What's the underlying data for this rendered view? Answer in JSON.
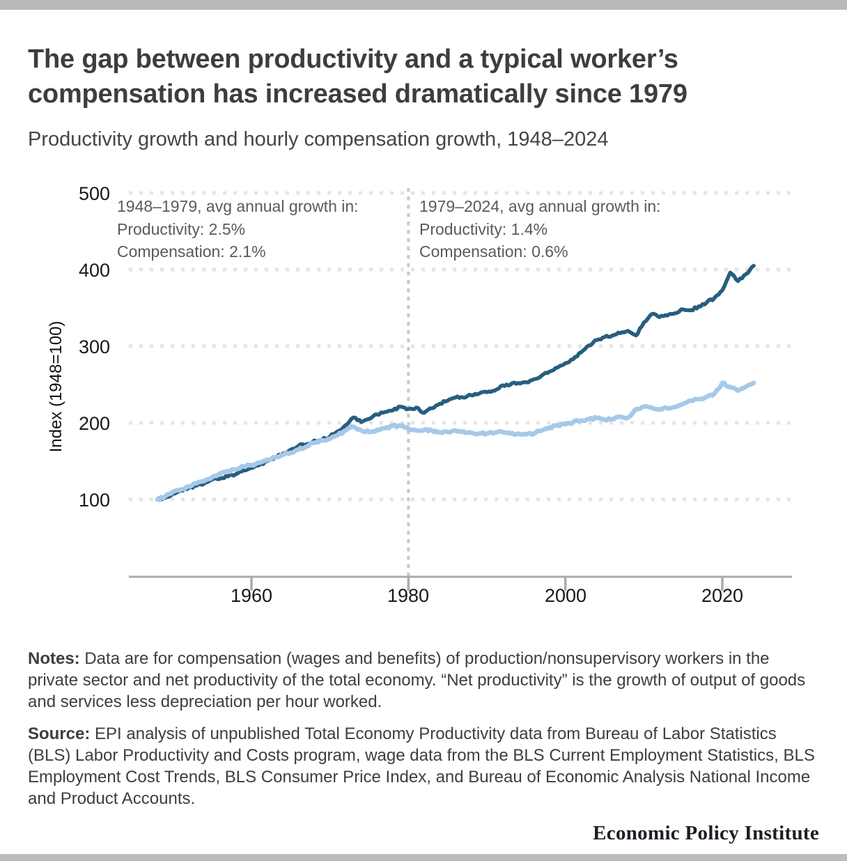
{
  "page": {
    "title": "The gap between productivity and a typical worker’s compensation has increased dramatically since 1979",
    "subtitle": "Productivity growth and hourly compensation growth, 1948–2024",
    "notes_label": "Notes:",
    "notes_text": " Data are for compensation (wages and benefits) of production/nonsupervisory workers in the private sector and net productivity of the total economy. “Net productivity” is the growth of output of goods and services less depreciation per hour worked.",
    "source_label": "Source:",
    "source_text": " EPI analysis of unpublished Total Economy Productivity data from Bureau of Labor Statistics (BLS) Labor Productivity and Costs program, wage data from the BLS Current Employment Statistics, BLS Employment Cost Trends, BLS Consumer Price Index, and Bureau of Economic Analysis National Income and Product Accounts.",
    "footer_brand": "Economic Policy Institute"
  },
  "annotations": {
    "left": {
      "line1": "1948–1979, avg annual growth in:",
      "line2": "Productivity: 2.5%",
      "line3": "Compensation: 2.1%"
    },
    "right": {
      "line1": "1979–2024, avg annual growth in:",
      "line2": "Productivity: 1.4%",
      "line3": "Compensation: 0.6%"
    }
  },
  "chart_data": {
    "type": "line",
    "ylabel": "Index (1948=100)",
    "y_ticks": [
      "500",
      "400",
      "300",
      "200",
      "100"
    ],
    "x_ticks": [
      "1960",
      "1980",
      "2000",
      "2020"
    ],
    "ylim": [
      0,
      500
    ],
    "xlim": [
      1944,
      2029
    ],
    "grid": "horizontal dotted gridlines at 100,200,300,400,500",
    "legend": "none (series identified by annotations)",
    "divider_year": 1980,
    "x": [
      1948,
      1949,
      1950,
      1951,
      1952,
      1953,
      1954,
      1955,
      1956,
      1957,
      1958,
      1959,
      1960,
      1961,
      1962,
      1963,
      1964,
      1965,
      1966,
      1967,
      1968,
      1969,
      1970,
      1971,
      1972,
      1973,
      1974,
      1975,
      1976,
      1977,
      1978,
      1979,
      1980,
      1981,
      1982,
      1983,
      1984,
      1985,
      1986,
      1987,
      1988,
      1989,
      1990,
      1991,
      1992,
      1993,
      1994,
      1995,
      1996,
      1997,
      1998,
      1999,
      2000,
      2001,
      2002,
      2003,
      2004,
      2005,
      2006,
      2007,
      2008,
      2009,
      2010,
      2011,
      2012,
      2013,
      2014,
      2015,
      2016,
      2017,
      2018,
      2019,
      2020,
      2021,
      2022,
      2023,
      2024
    ],
    "series": [
      {
        "name": "Productivity",
        "color": "#275e80",
        "values": [
          100,
          102,
          108,
          112,
          115,
          118,
          121,
          126,
          127,
          130,
          133,
          138,
          141,
          145,
          150,
          155,
          160,
          165,
          170,
          172,
          177,
          178,
          182,
          189,
          197,
          207,
          201,
          205,
          211,
          214,
          216,
          221,
          218,
          220,
          213,
          219,
          225,
          229,
          233,
          233,
          236,
          238,
          240,
          242,
          249,
          250,
          252,
          253,
          257,
          262,
          267,
          272,
          278,
          283,
          292,
          301,
          308,
          312,
          314,
          317,
          320,
          314,
          331,
          342,
          338,
          340,
          343,
          348,
          347,
          352,
          357,
          363,
          373,
          396,
          385,
          394,
          405
        ]
      },
      {
        "name": "Compensation",
        "color": "#a6c9e9",
        "values": [
          100,
          104,
          110,
          113,
          117,
          121,
          124,
          129,
          134,
          137,
          139,
          143,
          145,
          148,
          152,
          155,
          158,
          161,
          165,
          169,
          174,
          177,
          179,
          184,
          190,
          195,
          190,
          188,
          191,
          193,
          196,
          196,
          192,
          190,
          191,
          190,
          188,
          188,
          190,
          189,
          187,
          186,
          186,
          187,
          188,
          186,
          186,
          185,
          186,
          190,
          194,
          197,
          198,
          201,
          203,
          205,
          206,
          204,
          205,
          208,
          207,
          218,
          221,
          220,
          218,
          219,
          221,
          225,
          229,
          231,
          234,
          238,
          252,
          247,
          242,
          247,
          252
        ]
      }
    ]
  }
}
